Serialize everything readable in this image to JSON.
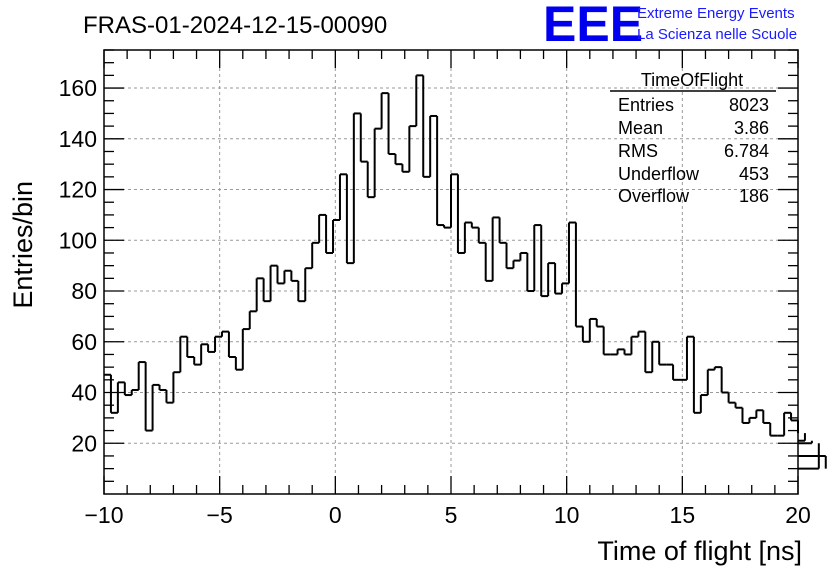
{
  "title": "FRAS-01-2024-12-15-00090",
  "logo": {
    "mark": "EEE",
    "line1": "Extreme Energy Events",
    "line2": "La Scienza nelle Scuole",
    "color": "#0000ee"
  },
  "stats": {
    "name": "TimeOfFlight",
    "rows": [
      {
        "label": "Entries",
        "value": "8023"
      },
      {
        "label": "Mean",
        "value": "3.86"
      },
      {
        "label": "RMS",
        "value": "6.784"
      },
      {
        "label": "Underflow",
        "value": "453"
      },
      {
        "label": "Overflow",
        "value": "186"
      }
    ]
  },
  "chart_data": {
    "type": "histogram",
    "xlabel": "Time of flight [ns]",
    "ylabel": "Entries/bin",
    "xlim": [
      -10,
      20
    ],
    "ylim": [
      0,
      175
    ],
    "bin_width": 0.3,
    "grid": true,
    "xticks": [
      -10,
      -5,
      0,
      5,
      10,
      15,
      20
    ],
    "yticks": [
      20,
      40,
      60,
      80,
      100,
      120,
      140,
      160
    ],
    "values": [
      47,
      32,
      44,
      39,
      41,
      52,
      25,
      43,
      41,
      36,
      48,
      62,
      54,
      51,
      59,
      56,
      62,
      64,
      54,
      49,
      65,
      72,
      85,
      76,
      90,
      83,
      88,
      84,
      76,
      89,
      99,
      110,
      95,
      108,
      126,
      91,
      150,
      131,
      117,
      144,
      158,
      134,
      130,
      127,
      145,
      165,
      125,
      149,
      106,
      105,
      126,
      95,
      107,
      105,
      99,
      84,
      109,
      99,
      89,
      92,
      95,
      80,
      106,
      78,
      91,
      79,
      83,
      107,
      66,
      60,
      69,
      66,
      55,
      55,
      57,
      55,
      62,
      64,
      48,
      60,
      51,
      51,
      45,
      45,
      62,
      32,
      39,
      49,
      50,
      40,
      36,
      34,
      28,
      30,
      33,
      28,
      23,
      23,
      32,
      29,
      24,
      21,
      20,
      10,
      15
    ]
  }
}
